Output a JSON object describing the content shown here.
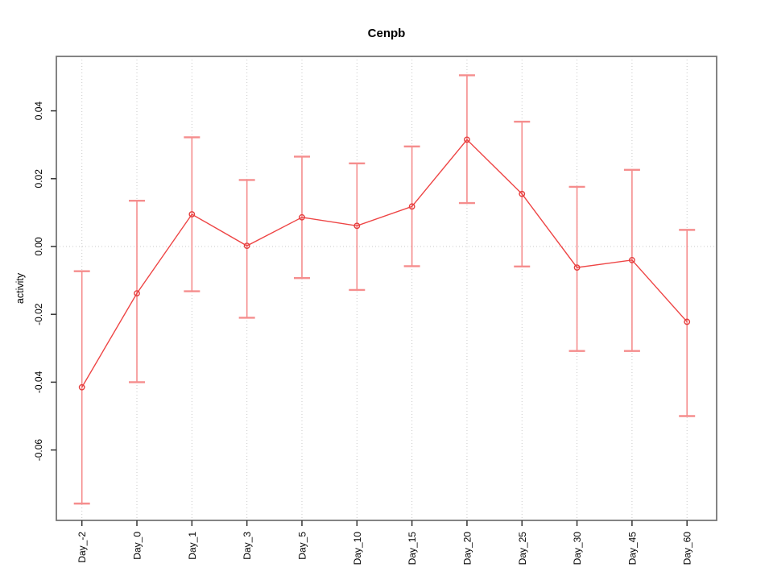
{
  "chart_data": {
    "type": "line",
    "title": "Cenpb",
    "ylabel": "activity",
    "xlabel": "",
    "categories": [
      "Day_-2",
      "Day_0",
      "Day_1",
      "Day_3",
      "Day_5",
      "Day_10",
      "Day_15",
      "Day_20",
      "Day_25",
      "Day_30",
      "Day_45",
      "Day_60"
    ],
    "series": [
      {
        "name": "activity",
        "values": [
          -0.0415,
          -0.0138,
          0.0095,
          0.0002,
          0.0086,
          0.0061,
          0.0118,
          0.0315,
          0.0155,
          -0.0062,
          -0.004,
          -0.0222
        ],
        "error_upper": [
          -0.0073,
          0.0135,
          0.0322,
          0.0196,
          0.0265,
          0.0245,
          0.0295,
          0.0505,
          0.0368,
          0.0176,
          0.0226,
          0.0049
        ],
        "error_lower": [
          -0.0758,
          -0.04,
          -0.0132,
          -0.021,
          -0.0093,
          -0.0128,
          -0.0058,
          0.0128,
          -0.0059,
          -0.0308,
          -0.0308,
          -0.05
        ]
      }
    ],
    "y_ticks": [
      0.04,
      0.02,
      0,
      -0.02,
      -0.04,
      -0.06
    ],
    "y_tick_labels": [
      "0.04",
      "0.02",
      "0.00",
      "-0.02",
      "-0.04",
      "-0.06"
    ],
    "ylim": [
      -0.0815,
      0.0555
    ],
    "grid": {
      "vertical_category_lines": true,
      "horizontal_zero_line": true,
      "style": "dotted"
    },
    "legend": "none",
    "marker": "open-circle",
    "colors": {
      "line": "#ee4545",
      "marker": "#e43f3f",
      "error_bar": "#f58d8d",
      "axis_box": "#777777",
      "tick": "#333333",
      "grid": "#c9c9c9",
      "text": "#000000"
    }
  }
}
